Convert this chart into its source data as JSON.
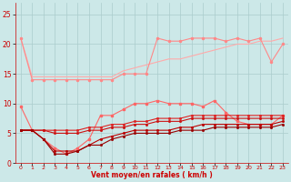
{
  "x": [
    0,
    1,
    2,
    3,
    4,
    5,
    6,
    7,
    8,
    9,
    10,
    11,
    12,
    13,
    14,
    15,
    16,
    17,
    18,
    19,
    20,
    21,
    22,
    23
  ],
  "line1": [
    21,
    14.5,
    14.5,
    14.5,
    14.5,
    14.5,
    14.5,
    14.5,
    14.5,
    15.5,
    16,
    16.5,
    17,
    17.5,
    17.5,
    18,
    18.5,
    19,
    19.5,
    20,
    20,
    20.5,
    20.5,
    21
  ],
  "line2": [
    21,
    14,
    14,
    14,
    14,
    14,
    14,
    14,
    14,
    15,
    15,
    15,
    21,
    20.5,
    20.5,
    21,
    21,
    21,
    20.5,
    21,
    20.5,
    21,
    17,
    20
  ],
  "line3": [
    9.5,
    5.5,
    4,
    2.5,
    1.5,
    2.5,
    4,
    8,
    8,
    9,
    10,
    10,
    10.5,
    10,
    10,
    10,
    9.5,
    10.5,
    8.5,
    7,
    6.5,
    6.5,
    6.5,
    8
  ],
  "line4": [
    5.5,
    5.5,
    5.5,
    5.5,
    5.5,
    5.5,
    6,
    6,
    6.5,
    6.5,
    7,
    7,
    7.5,
    7.5,
    7.5,
    8,
    8,
    8,
    8,
    8,
    8,
    8,
    8,
    8
  ],
  "line5": [
    5.5,
    5.5,
    5.5,
    5,
    5,
    5,
    5.5,
    5.5,
    6,
    6,
    6.5,
    6.5,
    7,
    7,
    7,
    7.5,
    7.5,
    7.5,
    7.5,
    7.5,
    7.5,
    7.5,
    7.5,
    7.5
  ],
  "line6": [
    5.5,
    5.5,
    4,
    2,
    2,
    2,
    3,
    4,
    4.5,
    5,
    5.5,
    5.5,
    5.5,
    5.5,
    6,
    6,
    6.5,
    6.5,
    6.5,
    6.5,
    6.5,
    6.5,
    6.5,
    7
  ],
  "line7": [
    5.5,
    5.5,
    4,
    1.5,
    1.5,
    2,
    3,
    3,
    4,
    4.5,
    5,
    5,
    5,
    5,
    5.5,
    5.5,
    5.5,
    6,
    6,
    6,
    6,
    6,
    6,
    6.5
  ],
  "bg_color": "#cce8e8",
  "grid_color": "#aacccc",
  "line1_color": "#ffaaaa",
  "line2_color": "#ff8888",
  "line3_color": "#ff6666",
  "line4_color": "#dd2222",
  "line5_color": "#cc1111",
  "line6_color": "#bb0000",
  "line7_color": "#990000",
  "xlabel": "Vent moyen/en rafales ( km/h )",
  "xlabel_color": "#cc0000",
  "tick_color": "#cc0000",
  "yticks": [
    0,
    5,
    10,
    15,
    20,
    25
  ],
  "ylim": [
    0,
    27
  ],
  "xlim": [
    -0.5,
    23.5
  ]
}
